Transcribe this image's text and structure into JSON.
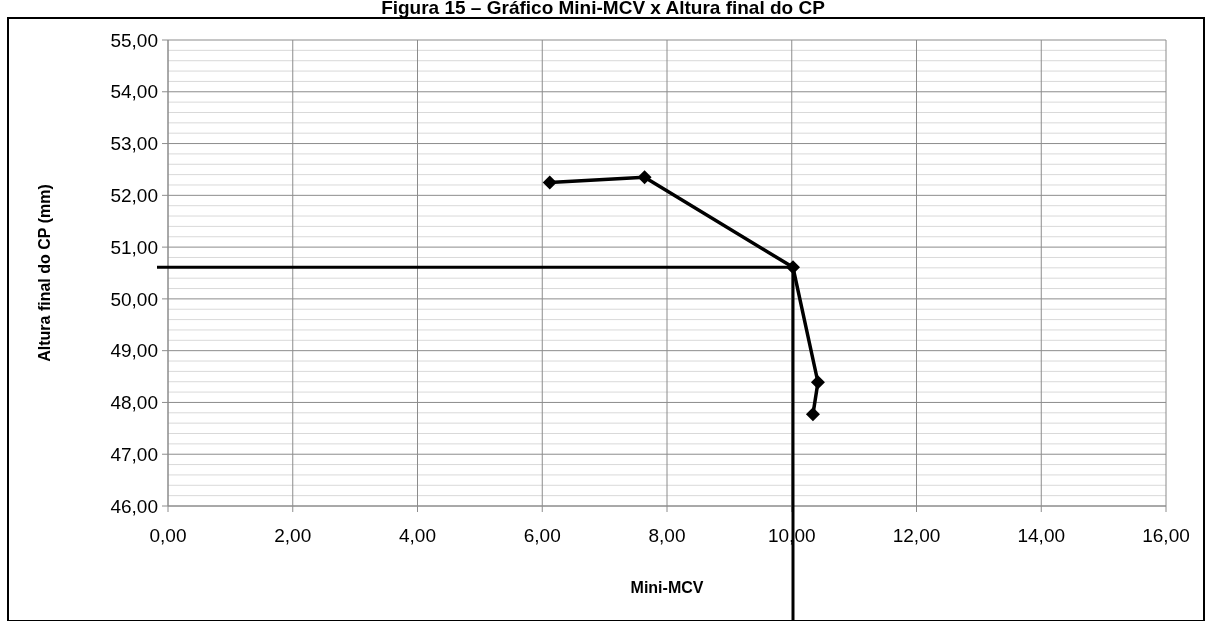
{
  "chart_data": {
    "type": "line",
    "title": "Figura 15 – Gráfico Mini-MCV x Altura final do CP",
    "xlabel": "Mini-MCV",
    "ylabel": "Altura final do CP (mm)",
    "series": [
      {
        "color": "#000000",
        "x": [
          6.12,
          7.64,
          10.02,
          10.42,
          10.34
        ],
        "values": [
          52.25,
          52.35,
          50.61,
          48.39,
          47.77
        ]
      }
    ],
    "marker": "diamond",
    "line_style": "solid",
    "grid": true,
    "xlim": [
      0,
      16
    ],
    "xticks": [
      {
        "value": 0,
        "label": "0,00"
      },
      {
        "value": 2,
        "label": "2,00"
      },
      {
        "value": 4,
        "label": "4,00"
      },
      {
        "value": 6,
        "label": "6,00"
      },
      {
        "value": 8,
        "label": "8,00"
      },
      {
        "value": 10,
        "label": "10,00"
      },
      {
        "value": 12,
        "label": "12,00"
      },
      {
        "value": 14,
        "label": "14,00"
      },
      {
        "value": 16,
        "label": "16,00"
      }
    ],
    "ylim": [
      46,
      55
    ],
    "yticks": [
      {
        "value": 46,
        "label": "46,00"
      },
      {
        "value": 47,
        "label": "47,00"
      },
      {
        "value": 48,
        "label": "48,00"
      },
      {
        "value": 49,
        "label": "49,00"
      },
      {
        "value": 50,
        "label": "50,00"
      },
      {
        "value": 51,
        "label": "51,00"
      },
      {
        "value": 52,
        "label": "52,00"
      },
      {
        "value": 53,
        "label": "53,00"
      },
      {
        "value": 54,
        "label": "54,00"
      },
      {
        "value": 55,
        "label": "55,00"
      }
    ],
    "ref_lines": [
      {
        "axis": "y",
        "value": 50.61,
        "color": "#000000"
      },
      {
        "axis": "x",
        "value": 10.02,
        "color": "#000000"
      }
    ]
  }
}
